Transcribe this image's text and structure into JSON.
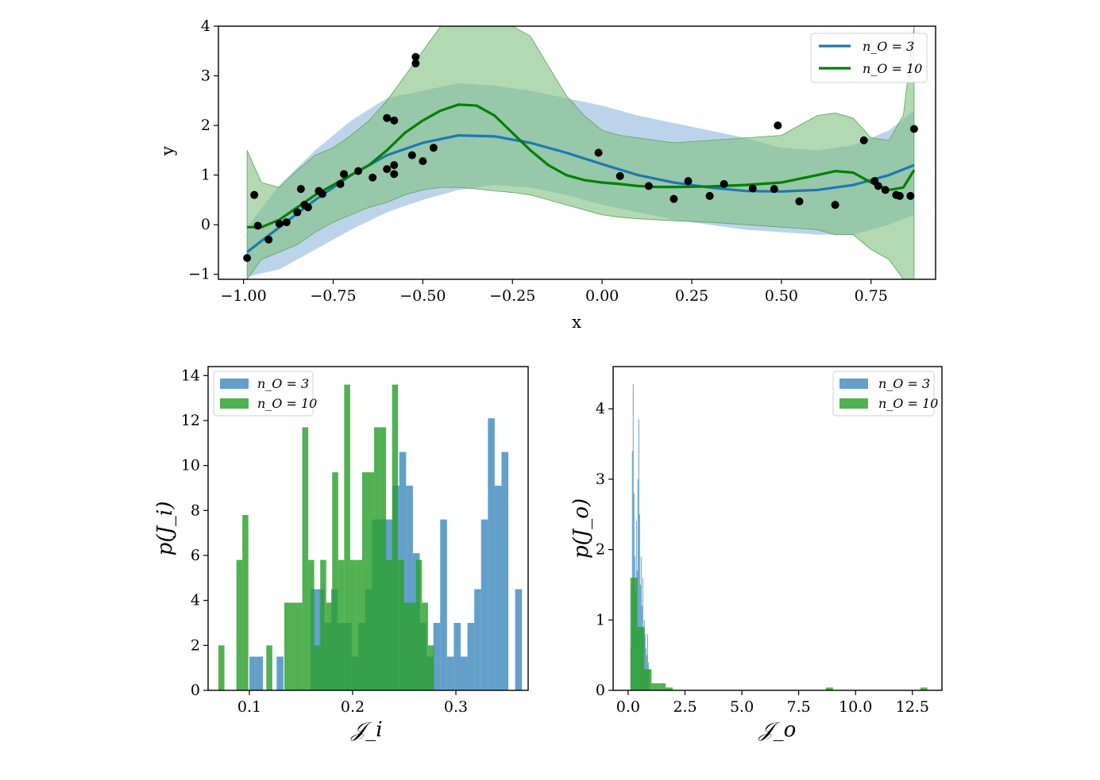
{
  "colors": {
    "blue": "#1f77b4",
    "green": "#008000",
    "green_hist": "#2ca02c",
    "points": "#000000"
  },
  "chart_data": [
    {
      "type": "line",
      "id": "gp-fit",
      "xlabel": "x",
      "ylabel": "y",
      "xlim": [
        -1.07,
        0.93
      ],
      "ylim": [
        -1.1,
        4.0
      ],
      "xticks": [
        -1.0,
        -0.75,
        -0.5,
        -0.25,
        0.0,
        0.25,
        0.5,
        0.75
      ],
      "xtick_labels": [
        "−1.00",
        "−0.75",
        "−0.50",
        "−0.25",
        "0.00",
        "0.25",
        "0.50",
        "0.75"
      ],
      "yticks": [
        -1,
        0,
        1,
        2,
        3,
        4
      ],
      "ytick_labels": [
        "−1",
        "0",
        "1",
        "2",
        "3",
        "4"
      ],
      "legend": {
        "position": "top-right",
        "entries": [
          "n_O = 3",
          "n_O = 10"
        ]
      },
      "series": [
        {
          "name": "n_O = 3",
          "color": "#1f77b4",
          "x": [
            -0.99,
            -0.9,
            -0.8,
            -0.7,
            -0.6,
            -0.5,
            -0.4,
            -0.3,
            -0.2,
            -0.1,
            0.0,
            0.1,
            0.2,
            0.3,
            0.4,
            0.5,
            0.6,
            0.7,
            0.8,
            0.87
          ],
          "mean": [
            -0.55,
            -0.05,
            0.5,
            1.0,
            1.4,
            1.65,
            1.8,
            1.78,
            1.65,
            1.45,
            1.22,
            1.0,
            0.85,
            0.75,
            0.68,
            0.67,
            0.7,
            0.8,
            1.0,
            1.2
          ],
          "lower": [
            -1.05,
            -0.9,
            -0.5,
            -0.1,
            0.25,
            0.5,
            0.7,
            0.8,
            0.75,
            0.6,
            0.4,
            0.25,
            0.1,
            0.0,
            -0.1,
            -0.15,
            -0.2,
            -0.2,
            0.0,
            0.2
          ],
          "upper": [
            -0.05,
            0.8,
            1.5,
            2.1,
            2.55,
            2.7,
            2.85,
            2.8,
            2.7,
            2.55,
            2.4,
            2.2,
            2.05,
            1.9,
            1.75,
            1.55,
            1.5,
            1.6,
            1.9,
            2.3
          ]
        },
        {
          "name": "n_O = 10",
          "color": "#008000",
          "x": [
            -0.99,
            -0.95,
            -0.9,
            -0.85,
            -0.8,
            -0.75,
            -0.7,
            -0.65,
            -0.6,
            -0.55,
            -0.5,
            -0.45,
            -0.4,
            -0.35,
            -0.3,
            -0.25,
            -0.2,
            -0.15,
            -0.1,
            -0.05,
            0.0,
            0.05,
            0.1,
            0.15,
            0.2,
            0.3,
            0.4,
            0.5,
            0.6,
            0.65,
            0.7,
            0.75,
            0.8,
            0.84,
            0.87
          ],
          "mean": [
            -0.05,
            -0.05,
            0.1,
            0.35,
            0.6,
            0.8,
            1.0,
            1.2,
            1.5,
            1.85,
            2.1,
            2.3,
            2.42,
            2.4,
            2.2,
            1.85,
            1.5,
            1.2,
            1.0,
            0.9,
            0.85,
            0.82,
            0.78,
            0.76,
            0.76,
            0.77,
            0.8,
            0.85,
            1.0,
            1.08,
            1.05,
            0.85,
            0.7,
            0.75,
            1.1
          ],
          "lower": [
            -1.1,
            -0.7,
            -0.55,
            -0.4,
            -0.15,
            0.05,
            0.2,
            0.35,
            0.45,
            0.6,
            0.7,
            0.75,
            0.75,
            0.72,
            0.68,
            0.65,
            0.6,
            0.5,
            0.4,
            0.3,
            0.2,
            0.15,
            0.12,
            0.1,
            0.08,
            0.05,
            0.0,
            -0.05,
            -0.1,
            -0.2,
            -0.2,
            -0.5,
            -0.7,
            -1.1,
            -1.1
          ],
          "upper": [
            1.5,
            0.85,
            0.75,
            1.1,
            1.4,
            1.55,
            1.8,
            2.1,
            2.5,
            3.0,
            3.5,
            4.0,
            4.0,
            4.0,
            4.0,
            4.0,
            3.8,
            3.2,
            2.6,
            2.2,
            1.9,
            1.8,
            1.75,
            1.7,
            1.65,
            1.7,
            1.75,
            1.8,
            2.2,
            2.25,
            2.15,
            1.75,
            1.7,
            2.2,
            4.0
          ]
        }
      ],
      "points": {
        "x": [
          -0.99,
          -0.97,
          -0.96,
          -0.93,
          -0.9,
          -0.88,
          -0.85,
          -0.84,
          -0.83,
          -0.82,
          -0.79,
          -0.78,
          -0.73,
          -0.72,
          -0.68,
          -0.64,
          -0.6,
          -0.6,
          -0.58,
          -0.58,
          -0.58,
          -0.53,
          -0.52,
          -0.52,
          -0.5,
          -0.47,
          -0.01,
          0.05,
          0.13,
          0.2,
          0.24,
          0.3,
          0.34,
          0.42,
          0.48,
          0.49,
          0.55,
          0.65,
          0.73,
          0.76,
          0.77,
          0.79,
          0.82,
          0.83,
          0.86,
          0.87
        ],
        "y": [
          -0.67,
          0.6,
          -0.02,
          -0.3,
          0.02,
          0.05,
          0.25,
          0.72,
          0.4,
          0.35,
          0.68,
          0.62,
          0.82,
          1.02,
          1.08,
          0.95,
          1.12,
          2.15,
          2.1,
          1.2,
          1.02,
          1.4,
          3.38,
          3.25,
          1.28,
          1.55,
          1.45,
          0.98,
          0.78,
          0.52,
          0.88,
          0.58,
          0.82,
          0.73,
          0.72,
          2.0,
          0.47,
          0.4,
          1.7,
          0.88,
          0.78,
          0.7,
          0.6,
          0.58,
          0.58,
          1.93
        ]
      }
    },
    {
      "type": "bar",
      "id": "hist-ji",
      "xlabel": "𝒥_i",
      "ylabel": "p(J_i)",
      "xlim": [
        0.06,
        0.37
      ],
      "ylim": [
        0,
        14.4
      ],
      "xticks": [
        0.1,
        0.2,
        0.3
      ],
      "xtick_labels": [
        "0.1",
        "0.2",
        "0.3"
      ],
      "yticks": [
        0,
        2,
        4,
        6,
        8,
        10,
        12,
        14
      ],
      "ytick_labels": [
        "0",
        "2",
        "4",
        "6",
        "8",
        "10",
        "12",
        "14"
      ],
      "legend": {
        "position": "top-left",
        "entries": [
          "n_O = 3",
          "n_O = 10"
        ]
      },
      "series": [
        {
          "name": "n_O = 3",
          "color": "#1f77b4",
          "bin_width": 0.0066,
          "x": [
            0.1,
            0.1066,
            0.1264,
            0.1594,
            0.166,
            0.1726,
            0.1792,
            0.1858,
            0.1924,
            0.199,
            0.2056,
            0.2122,
            0.2188,
            0.2254,
            0.232,
            0.2386,
            0.2452,
            0.2518,
            0.2584,
            0.265,
            0.2716,
            0.2782,
            0.2848,
            0.2914,
            0.298,
            0.3046,
            0.3112,
            0.3178,
            0.3244,
            0.331,
            0.3376,
            0.3442,
            0.3574
          ],
          "values": [
            1.5,
            1.5,
            1.5,
            4.5,
            4.5,
            3.0,
            4.5,
            3.0,
            3.0,
            1.5,
            3.0,
            4.5,
            7.6,
            7.6,
            7.6,
            9.1,
            10.6,
            9.1,
            6.1,
            3.0,
            1.5,
            3.0,
            7.6,
            1.5,
            3.0,
            1.5,
            3.0,
            4.5,
            7.6,
            12.1,
            9.1,
            10.6,
            4.5
          ]
        },
        {
          "name": "n_O = 10",
          "color": "#2ca02c",
          "bin_width": 0.0058,
          "x": [
            0.07,
            0.0874,
            0.0932,
            0.1164,
            0.1338,
            0.1396,
            0.1454,
            0.1512,
            0.157,
            0.1628,
            0.1686,
            0.1744,
            0.1802,
            0.186,
            0.1918,
            0.1976,
            0.2034,
            0.2092,
            0.215,
            0.2208,
            0.2266,
            0.2324,
            0.2382,
            0.244,
            0.2498,
            0.2556,
            0.2614,
            0.2672,
            0.273
          ],
          "values": [
            2.0,
            5.8,
            7.8,
            2.0,
            3.9,
            3.9,
            3.9,
            11.7,
            5.8,
            2.0,
            5.8,
            3.9,
            9.7,
            5.8,
            13.6,
            5.8,
            5.8,
            9.7,
            9.7,
            11.7,
            11.7,
            5.8,
            13.6,
            5.8,
            3.9,
            3.9,
            5.8,
            3.9,
            2.0
          ]
        }
      ]
    },
    {
      "type": "bar",
      "id": "hist-jo",
      "xlabel": "𝒥_o",
      "ylabel": "p(J_o)",
      "xlim": [
        -0.66,
        13.8
      ],
      "ylim": [
        0,
        4.6
      ],
      "xticks": [
        0.0,
        2.5,
        5.0,
        7.5,
        10.0,
        12.5
      ],
      "xtick_labels": [
        "0.0",
        "2.5",
        "5.0",
        "7.5",
        "10.0",
        "12.5"
      ],
      "yticks": [
        0,
        1,
        2,
        3,
        4
      ],
      "ytick_labels": [
        "0",
        "1",
        "2",
        "3",
        "4"
      ],
      "legend": {
        "position": "top-right",
        "entries": [
          "n_O = 3",
          "n_O = 10"
        ]
      },
      "series": [
        {
          "name": "n_O = 3",
          "color": "#1f77b4",
          "bin_width": 0.035,
          "x": [
            0.1,
            0.135,
            0.17,
            0.205,
            0.24,
            0.275,
            0.31,
            0.345,
            0.38,
            0.415,
            0.45,
            0.485,
            0.52,
            0.555,
            0.59,
            0.625,
            0.66,
            0.695,
            0.73,
            0.765,
            0.8,
            0.835,
            0.87,
            0.905
          ],
          "values": [
            0.6,
            1.5,
            3.4,
            4.35,
            2.8,
            1.9,
            1.4,
            2.4,
            1.7,
            3.0,
            3.85,
            2.5,
            1.5,
            1.9,
            1.2,
            1.6,
            0.9,
            1.0,
            0.8,
            0.6,
            0.5,
            0.8,
            0.4,
            0.3
          ]
        },
        {
          "name": "n_O = 10",
          "color": "#2ca02c",
          "bin_width": 0.31,
          "x": [
            0.1,
            0.41,
            0.72,
            1.03,
            1.34,
            1.65,
            8.7,
            12.85
          ],
          "values": [
            1.6,
            0.9,
            0.3,
            0.1,
            0.1,
            0.04,
            0.04,
            0.04
          ]
        }
      ]
    }
  ]
}
